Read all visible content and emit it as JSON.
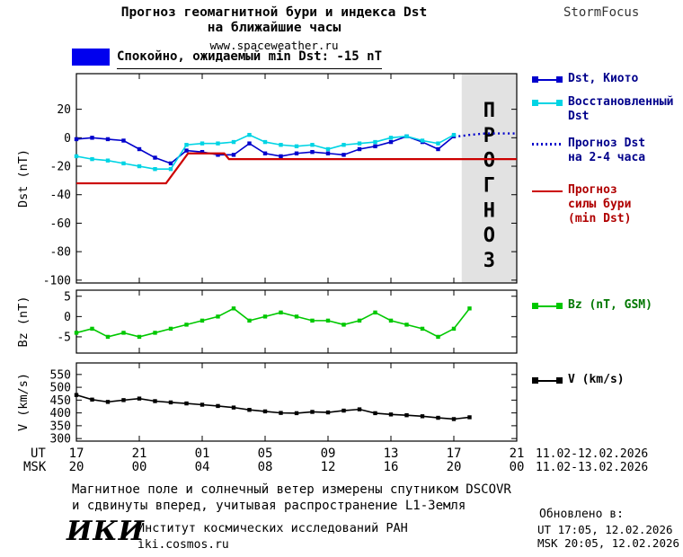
{
  "header": {
    "title_line1": "Прогноз геомагнитной бури и индекса Dst",
    "title_line2": "на ближайшие часы",
    "site": "www.spaceweather.ru",
    "brand": "StormFocus"
  },
  "status_banner": {
    "label": "Спокойно, ожидаемый min Dst: -15 nT",
    "swatch_color": "#0000ee"
  },
  "legend": {
    "dst_kyoto": "Dst, Киото",
    "restored": [
      "Восстановленный",
      "Dst"
    ],
    "dst_forecast": [
      "Прогноз Dst",
      "на 2-4 часа"
    ],
    "storm_forecast": [
      "Прогноз",
      "силы бури",
      "(min Dst)"
    ],
    "bz": "Bz (nT, GSM)",
    "v": "V (km/s)"
  },
  "x_axis": {
    "ut_label": "UT",
    "msk_label": "MSK",
    "tick_hours": [
      0,
      4,
      8,
      12,
      16,
      20,
      24,
      28
    ],
    "ut_ticks": [
      "17",
      "21",
      "01",
      "05",
      "09",
      "13",
      "17",
      "21"
    ],
    "msk_ticks": [
      "20",
      "00",
      "04",
      "08",
      "12",
      "16",
      "20",
      "00"
    ],
    "ut_range": "11.02-12.02.2026",
    "msk_range": "11.02-13.02.2026"
  },
  "footer": {
    "line1": "Магнитное поле и солнечный ветер измерены спутником DSCOVR",
    "line2": "и сдвинуты вперед, учитывая распространение L1-Земля"
  },
  "org": {
    "logo": "ИКИ",
    "name": "Институт космических исследований РАН",
    "site": "iki.cosmos.ru"
  },
  "updated": {
    "label": "Обновлено в:",
    "ut": "UT  17:05, 12.02.2026",
    "msk": "MSK 20:05, 12.02.2026"
  },
  "chart_data": [
    {
      "id": "dst",
      "type": "line",
      "ylabel": "Dst (nT)",
      "xlim": [
        0,
        28
      ],
      "ylim": [
        -102,
        45
      ],
      "yticks": [
        20,
        0,
        -20,
        -40,
        -60,
        -80,
        -100
      ],
      "forecast_region": {
        "start": 24.5,
        "end": 28,
        "label": "ПРОГНОЗ"
      },
      "series": [
        {
          "id": "dst_kyoto",
          "name": "Dst, Киото",
          "color": "#0000cc",
          "marker": "square",
          "x_start": 0,
          "x_step": 1,
          "values": [
            -1,
            0,
            -1,
            -2,
            -8,
            -14,
            -18,
            -9,
            -10,
            -12,
            -12,
            -4,
            -11,
            -13,
            -11,
            -10,
            -11,
            -12,
            -8,
            -6,
            -3,
            1,
            -3,
            -8,
            1
          ]
        },
        {
          "id": "dst_restored",
          "name": "Восстановленный Dst",
          "color": "#00d4e4",
          "marker": "square",
          "x_start": 0,
          "x_step": 1,
          "values": [
            -13,
            -15,
            -16,
            -18,
            -20,
            -22,
            -22,
            -5,
            -4,
            -4,
            -3,
            2,
            -3,
            -5,
            -6,
            -5,
            -8,
            -5,
            -4,
            -3,
            0,
            1,
            -2,
            -4,
            2
          ]
        },
        {
          "id": "dst_forecast",
          "name": "Прогноз Dst на 2-4 часа",
          "color": "#0000cc",
          "style": "dotted",
          "width": 2.4,
          "x": [
            24.3,
            25,
            26,
            27,
            28
          ],
          "values": [
            1,
            2,
            3,
            3,
            3
          ]
        },
        {
          "id": "storm_forecast",
          "name": "Прогноз силы бури (min Dst)",
          "color": "#cc0000",
          "width": 2.2,
          "x": [
            0,
            5.7,
            7.1,
            9.4,
            9.7,
            28
          ],
          "values": [
            -32,
            -32,
            -11,
            -11,
            -15,
            -15
          ]
        }
      ]
    },
    {
      "id": "bz",
      "type": "line",
      "ylabel": "Bz (nT)",
      "xlim": [
        0,
        28
      ],
      "ylim": [
        -9,
        6.5
      ],
      "yticks": [
        5,
        0,
        -5
      ],
      "series": [
        {
          "id": "bz",
          "name": "Bz (nT, GSM)",
          "color": "#00c800",
          "marker": "square",
          "x_start": 0,
          "x_step": 1,
          "values": [
            -4,
            -3,
            -5,
            -4,
            -5,
            -4,
            -3,
            -2,
            -1,
            0,
            2,
            -1,
            0,
            1,
            0,
            -1,
            -1,
            -2,
            -1,
            1,
            -1,
            -2,
            -3,
            -5,
            -3,
            2
          ]
        }
      ]
    },
    {
      "id": "v",
      "type": "line",
      "ylabel": "V (km/s)",
      "xlim": [
        0,
        28
      ],
      "ylim": [
        290,
        595
      ],
      "yticks": [
        550,
        500,
        450,
        400,
        350,
        300
      ],
      "series": [
        {
          "id": "v",
          "name": "V (km/s)",
          "color": "#000000",
          "marker": "square",
          "x_start": 0,
          "x_step": 1,
          "values": [
            470,
            452,
            443,
            450,
            456,
            446,
            441,
            437,
            432,
            427,
            421,
            412,
            406,
            400,
            399,
            404,
            402,
            409,
            414,
            399,
            394,
            391,
            387,
            381,
            376,
            383
          ]
        }
      ]
    }
  ]
}
